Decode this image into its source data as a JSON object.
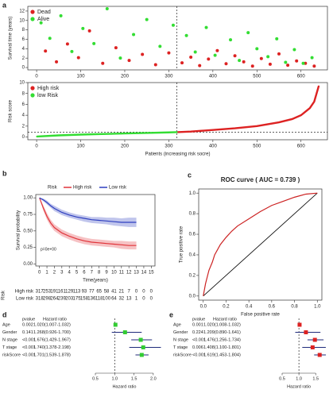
{
  "chart_data": [
    {
      "type": "scatter",
      "panel_label": "a",
      "ylabel": "Survival time (years)",
      "legend": "top-left",
      "xlim": [
        -20,
        660
      ],
      "ylim": [
        -0.5,
        13
      ],
      "xticks": [
        0,
        100,
        200,
        300,
        400,
        500,
        600
      ],
      "yticks": [
        0,
        2,
        4,
        6,
        8,
        10,
        12
      ],
      "reference_x": 318,
      "series": [
        {
          "name": "Dead",
          "color": "#dd2222",
          "x": [
            20,
            45,
            70,
            95,
            120,
            150,
            180,
            210,
            240,
            270,
            300,
            330,
            350,
            370,
            390,
            410,
            430,
            450,
            470,
            490,
            510,
            530,
            550,
            570,
            590,
            610,
            630
          ],
          "values": [
            3.5,
            1.2,
            5.0,
            2.1,
            7.8,
            0.9,
            4.2,
            1.5,
            2.8,
            0.6,
            3.1,
            1.0,
            2.2,
            0.4,
            1.8,
            3.6,
            0.8,
            2.5,
            1.2,
            0.3,
            1.9,
            0.7,
            2.9,
            0.5,
            1.4,
            0.9,
            0.3
          ]
        },
        {
          "name": "Alive",
          "color": "#33dd33",
          "x": [
            10,
            30,
            55,
            80,
            105,
            130,
            160,
            190,
            220,
            250,
            280,
            310,
            340,
            360,
            385,
            405,
            440,
            460,
            480,
            500,
            525,
            545,
            565,
            585,
            605,
            625
          ],
          "values": [
            9.5,
            6.2,
            11.0,
            3.4,
            8.3,
            5.1,
            12.5,
            2.0,
            7.0,
            10.2,
            4.5,
            9.0,
            6.8,
            3.3,
            8.5,
            2.6,
            5.9,
            1.5,
            7.4,
            4.0,
            2.3,
            6.1,
            1.1,
            3.8,
            0.9,
            2.1
          ]
        }
      ]
    },
    {
      "type": "line",
      "ylabel": "Risk score",
      "xlabel": "Patients (increasing risk socre)",
      "legend": "top-left",
      "xlim": [
        -20,
        660
      ],
      "ylim": [
        -0.5,
        10
      ],
      "xticks": [
        0,
        100,
        200,
        300,
        400,
        500,
        600
      ],
      "yticks": [
        0,
        2,
        4,
        6,
        8,
        10
      ],
      "reference_x": 318,
      "reference_y": 0.9,
      "series": [
        {
          "name": "High risk",
          "color": "#dd2222",
          "x": [
            319,
            350,
            400,
            450,
            500,
            550,
            580,
            600,
            620,
            630,
            640
          ],
          "values": [
            0.9,
            1.0,
            1.3,
            1.6,
            2.0,
            2.7,
            3.3,
            4.0,
            5.3,
            6.5,
            9.3
          ]
        },
        {
          "name": "low Risk",
          "color": "#33dd33",
          "x": [
            1,
            50,
            100,
            150,
            200,
            250,
            300,
            318
          ],
          "values": [
            0.1,
            0.3,
            0.45,
            0.55,
            0.65,
            0.75,
            0.85,
            0.9
          ]
        }
      ]
    },
    {
      "type": "survival",
      "panel_label": "b",
      "ylabel": "Survival probability",
      "xlabel": "Time(years)",
      "legend_title": "Risk",
      "annotation": "p=0e+00",
      "table_title": "Risk",
      "xlim": [
        -0.5,
        15.5
      ],
      "ylim": [
        -0.03,
        1.05
      ],
      "xticks": [
        0,
        1,
        2,
        3,
        4,
        5,
        6,
        7,
        8,
        9,
        10,
        11,
        12,
        13,
        14,
        15
      ],
      "yticks": [
        {
          "value": 0,
          "label": "0.00"
        },
        {
          "value": 0.25,
          "label": "0.25"
        },
        {
          "value": 0.5,
          "label": "0.50"
        },
        {
          "value": 0.75,
          "label": "0.75"
        },
        {
          "value": 1,
          "label": "1.00"
        }
      ],
      "series": [
        {
          "name": "High risk",
          "color": "#e0343a",
          "x": [
            0,
            0.5,
            1,
            1.5,
            2,
            3,
            4,
            5,
            6,
            7,
            8,
            9,
            10,
            11,
            12,
            13
          ],
          "values": [
            1,
            0.85,
            0.72,
            0.62,
            0.55,
            0.47,
            0.42,
            0.38,
            0.35,
            0.33,
            0.32,
            0.31,
            0.3,
            0.29,
            0.28,
            0.28
          ],
          "lower": [
            1,
            0.81,
            0.67,
            0.57,
            0.5,
            0.42,
            0.37,
            0.33,
            0.3,
            0.28,
            0.27,
            0.26,
            0.25,
            0.23,
            0.22,
            0.22
          ],
          "upper": [
            1,
            0.89,
            0.77,
            0.67,
            0.6,
            0.52,
            0.47,
            0.43,
            0.4,
            0.38,
            0.37,
            0.36,
            0.35,
            0.35,
            0.34,
            0.34
          ],
          "at_risk": [
            317,
            253,
            191,
            161,
            129,
            113,
            93,
            77,
            65,
            58,
            41,
            21,
            7,
            0,
            0,
            0
          ]
        },
        {
          "name": "Low risk",
          "color": "#2e3fbf",
          "x": [
            0,
            0.5,
            1,
            1.5,
            2,
            3,
            4,
            5,
            6,
            7,
            8,
            9,
            10,
            11,
            12,
            13
          ],
          "values": [
            1,
            0.97,
            0.93,
            0.88,
            0.84,
            0.78,
            0.74,
            0.71,
            0.69,
            0.67,
            0.66,
            0.65,
            0.64,
            0.63,
            0.63,
            0.63
          ],
          "lower": [
            1,
            0.95,
            0.9,
            0.85,
            0.8,
            0.74,
            0.7,
            0.67,
            0.64,
            0.62,
            0.61,
            0.6,
            0.58,
            0.57,
            0.56,
            0.56
          ],
          "upper": [
            1,
            0.99,
            0.96,
            0.91,
            0.88,
            0.82,
            0.78,
            0.75,
            0.73,
            0.71,
            0.71,
            0.7,
            0.7,
            0.69,
            0.7,
            0.7
          ],
          "at_risk": [
            318,
            298,
            264,
            239,
            203,
            175,
            158,
            136,
            118,
            100,
            64,
            32,
            13,
            1,
            0,
            0
          ]
        }
      ]
    },
    {
      "type": "roc",
      "panel_label": "c",
      "title": "ROC curve ( AUC = 0.739 )",
      "xlabel": "False positive rate",
      "ylabel": "True positive rate",
      "color": "#cc2222",
      "xlim": [
        -0.04,
        1.04
      ],
      "ylim": [
        -0.04,
        1.04
      ],
      "xticks": [
        {
          "value": 0,
          "label": "0.0"
        },
        0.2,
        0.4,
        0.6,
        0.8,
        {
          "value": 1,
          "label": "1.0"
        }
      ],
      "yticks": [
        {
          "value": 0,
          "label": "0.0"
        },
        0.2,
        0.4,
        0.6,
        0.8,
        {
          "value": 1,
          "label": "1.0"
        }
      ],
      "x": [
        0,
        0.02,
        0.05,
        0.08,
        0.1,
        0.15,
        0.2,
        0.25,
        0.3,
        0.4,
        0.5,
        0.6,
        0.7,
        0.8,
        0.9,
        1.0
      ],
      "values": [
        0,
        0.12,
        0.25,
        0.33,
        0.4,
        0.5,
        0.57,
        0.63,
        0.68,
        0.75,
        0.82,
        0.88,
        0.92,
        0.96,
        0.99,
        1.0
      ]
    },
    {
      "type": "forest",
      "panel_label": "d",
      "columns": [
        "pvalue",
        "Hazard ratio"
      ],
      "xlabel": "Hazard ratio",
      "color": "#33cc33",
      "categories": [
        "Age",
        "Gender",
        "N stage",
        "T stage",
        "riskScore"
      ],
      "pvalues": [
        "0.002",
        "0.141",
        "<0.001",
        "<0.001",
        "<0.001"
      ],
      "hr_labels": [
        "1.020(1.007-1.032)",
        "1.268(0.926-1.700)",
        "1.676(1.429-1.967)",
        "1.740(1.378-2.198)",
        "1.701(1.539-1.878)"
      ],
      "values": [
        1.02,
        1.268,
        1.676,
        1.74,
        1.701
      ],
      "lower": [
        1.007,
        0.926,
        1.429,
        1.378,
        1.539
      ],
      "upper": [
        1.032,
        1.7,
        1.967,
        2.198,
        1.878
      ],
      "reference_x": 1,
      "xlim": [
        0.5,
        2.25
      ],
      "xticks": [
        0.5,
        {
          "value": 1,
          "label": "1.0"
        },
        1.5,
        {
          "value": 2,
          "label": "2.0"
        }
      ]
    },
    {
      "type": "forest",
      "panel_label": "e",
      "columns": [
        "pvalue",
        "Hazard ratio"
      ],
      "xlabel": "Hazard ratio",
      "color": "#dd2222",
      "categories": [
        "Age",
        "Gender",
        "N stage",
        "T stage",
        "riskScore"
      ],
      "pvalues": [
        "0.001",
        "0.224",
        "<0.001",
        "0.006",
        "<0.001"
      ],
      "hr_labels": [
        "1.020(1.008-1.032)",
        "1.209(0.890-1.641)",
        "1.476(1.256-1.734)",
        "1.408(1.100-1.801)",
        "1.619(1.453-1.804)"
      ],
      "values": [
        1.02,
        1.209,
        1.476,
        1.408,
        1.619
      ],
      "lower": [
        1.008,
        0.89,
        1.256,
        1.1,
        1.453
      ],
      "upper": [
        1.032,
        1.641,
        1.734,
        1.801,
        1.804
      ],
      "reference_x": 1,
      "xlim": [
        0.5,
        1.85
      ],
      "xticks": [
        0.5,
        {
          "value": 1,
          "label": "1.0"
        },
        1.5
      ]
    }
  ]
}
